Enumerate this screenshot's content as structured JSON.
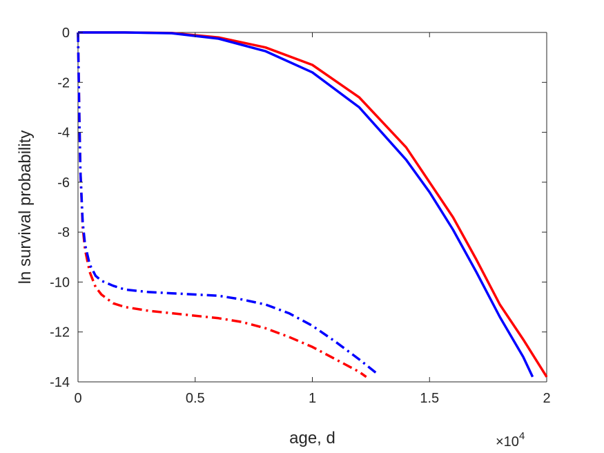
{
  "chart_data": {
    "type": "line",
    "title": "",
    "xlabel": "age, d",
    "ylabel": "ln survival probability",
    "x_multiplier": {
      "base": "×10",
      "exponent": "4"
    },
    "xlim": [
      0,
      20000
    ],
    "ylim": [
      -14,
      0
    ],
    "xticks": [
      0,
      5000,
      10000,
      15000,
      20000
    ],
    "xtick_labels": [
      "0",
      "0.5",
      "1",
      "1.5",
      "2"
    ],
    "yticks": [
      0,
      -2,
      -4,
      -6,
      -8,
      -10,
      -12,
      -14
    ],
    "ytick_labels": [
      "0",
      "-2",
      "-4",
      "-6",
      "-8",
      "-10",
      "-12",
      "-14"
    ],
    "grid": false,
    "legend": "none",
    "series": [
      {
        "color": "#ff0000",
        "style": "solid",
        "x": [
          0,
          2000,
          4000,
          6000,
          8000,
          10000,
          12000,
          14000,
          16000,
          17000,
          18000,
          19000,
          20000
        ],
        "y": [
          0,
          0,
          -0.02,
          -0.2,
          -0.6,
          -1.3,
          -2.6,
          -4.6,
          -7.4,
          -9.1,
          -10.9,
          -12.3,
          -13.8
        ]
      },
      {
        "color": "#0000ff",
        "style": "solid",
        "x": [
          0,
          2000,
          4000,
          6000,
          8000,
          10000,
          12000,
          14000,
          15000,
          16000,
          17000,
          18000,
          19000,
          19400
        ],
        "y": [
          0,
          0,
          -0.03,
          -0.25,
          -0.75,
          -1.6,
          -3.0,
          -5.1,
          -6.4,
          -7.9,
          -9.6,
          -11.4,
          -13.0,
          -13.8
        ]
      },
      {
        "color": "#ff0000",
        "style": "dashdot",
        "x": [
          0,
          50,
          100,
          200,
          300,
          500,
          750,
          1000,
          1500,
          2000,
          3000,
          4000,
          5000,
          6000,
          7000,
          8000,
          9000,
          10000,
          11000,
          12000,
          12300
        ],
        "y": [
          0,
          -3.0,
          -5.5,
          -7.8,
          -8.7,
          -9.6,
          -10.2,
          -10.5,
          -10.85,
          -11.0,
          -11.15,
          -11.25,
          -11.35,
          -11.45,
          -11.6,
          -11.85,
          -12.2,
          -12.6,
          -13.1,
          -13.6,
          -13.8
        ]
      },
      {
        "color": "#0000ff",
        "style": "dashdot",
        "x": [
          0,
          50,
          100,
          200,
          300,
          500,
          750,
          1000,
          1500,
          2000,
          3000,
          4000,
          5000,
          6000,
          7000,
          8000,
          9000,
          10000,
          11000,
          12000,
          12800
        ],
        "y": [
          0,
          -3.0,
          -5.5,
          -7.6,
          -8.5,
          -9.3,
          -9.75,
          -9.95,
          -10.15,
          -10.3,
          -10.4,
          -10.45,
          -10.5,
          -10.55,
          -10.7,
          -10.9,
          -11.25,
          -11.75,
          -12.4,
          -13.1,
          -13.7
        ]
      }
    ]
  }
}
